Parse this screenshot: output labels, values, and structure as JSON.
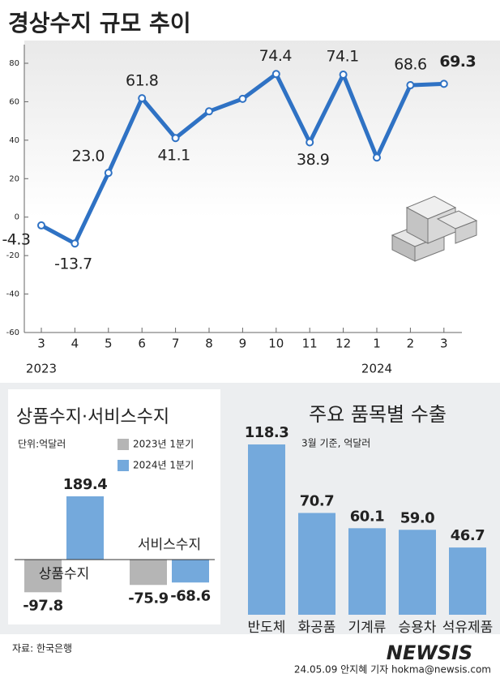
{
  "chart_data": [
    {
      "type": "line",
      "title": "경상수지 규모 추이",
      "categories": [
        "3",
        "4",
        "5",
        "6",
        "7",
        "8",
        "9",
        "10",
        "11",
        "12",
        "1",
        "2",
        "3"
      ],
      "year_labels": [
        "2023",
        null,
        null,
        null,
        null,
        null,
        null,
        null,
        null,
        null,
        "2024",
        null,
        null
      ],
      "values": [
        -4.3,
        -13.7,
        23.0,
        61.8,
        41.1,
        55,
        61.5,
        74.4,
        38.9,
        74.1,
        31,
        68.6,
        69.3
      ],
      "value_labels": [
        "-4.3",
        "-13.7",
        "23.0",
        "61.8",
        "41.1",
        null,
        null,
        "74.4",
        "38.9",
        "74.1",
        null,
        "68.6",
        "69.3"
      ],
      "color": "#2f72c4",
      "ylim": [
        -60,
        80
      ],
      "yticks": [
        -60,
        -40,
        -20,
        0,
        20,
        40,
        60,
        80
      ],
      "grid": false
    },
    {
      "type": "grouped-bar",
      "title": "상품수지·서비스수지",
      "unit": "단위:억달러",
      "categories": [
        "상품수지",
        "서비스수지"
      ],
      "series": [
        {
          "name": "2023년 1분기",
          "color": "#b5b5b5",
          "values": [
            -97.8,
            -75.9
          ]
        },
        {
          "name": "2024년 1분기",
          "color": "#74a9dc",
          "values": [
            189.4,
            -68.6
          ]
        }
      ]
    },
    {
      "type": "bar",
      "title": "주요 품목별 수출",
      "subtitle": "3월 기준, 억달러",
      "categories": [
        "반도체",
        "화공품",
        "기계류",
        "승용차",
        "석유제품"
      ],
      "values": [
        118.3,
        70.7,
        60.1,
        59.0,
        46.7
      ],
      "value_labels": [
        "118.3",
        "70.7",
        "60.1",
        "59.0",
        "46.7"
      ],
      "color": "#74a9dc"
    }
  ],
  "source": "자료: 한국은행",
  "credit": "24.05.09 안지혜 기자 hokma@newsis.com",
  "logo": "NEWSIS"
}
